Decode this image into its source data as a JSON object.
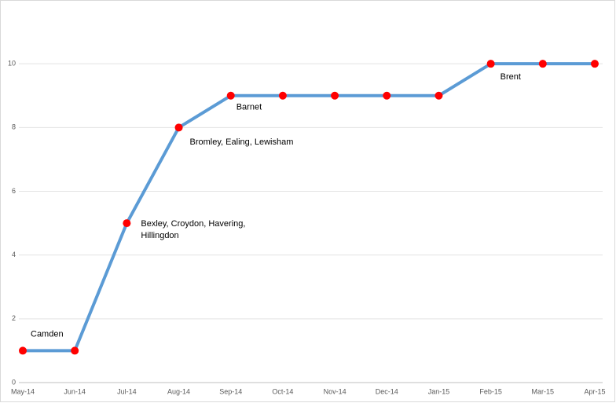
{
  "chart_data": {
    "type": "line",
    "categories": [
      "May-14",
      "Jun-14",
      "Jul-14",
      "Aug-14",
      "Sep-14",
      "Oct-14",
      "Nov-14",
      "Dec-14",
      "Jan-15",
      "Feb-15",
      "Mar-15",
      "Apr-15"
    ],
    "series": [
      {
        "color": "#5b9bd5",
        "marker_color": "#ff0000",
        "values": [
          1,
          1,
          5,
          8,
          9,
          9,
          9,
          9,
          9,
          10,
          10,
          10
        ]
      }
    ],
    "ylim": [
      0,
      12
    ],
    "yticks": [
      0,
      2,
      4,
      6,
      8,
      10
    ],
    "grid": true,
    "annotations": [
      {
        "category": "May-14",
        "lines": [
          "Camden"
        ]
      },
      {
        "category": "Jul-14",
        "lines": [
          "Bexley, Croydon, Havering,",
          "Hillingdon"
        ]
      },
      {
        "category": "Aug-14",
        "lines": [
          "Bromley, Ealing, Lewisham"
        ]
      },
      {
        "category": "Sep-14",
        "lines": [
          "Barnet"
        ]
      },
      {
        "category": "Feb-15",
        "lines": [
          "Brent"
        ]
      }
    ]
  }
}
